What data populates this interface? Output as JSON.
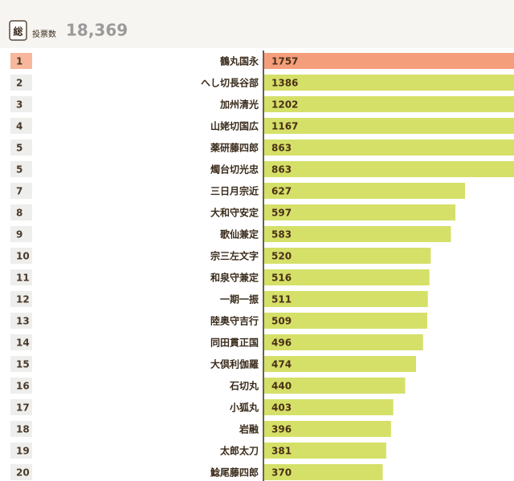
{
  "header": {
    "icon": "総",
    "label": "投票数",
    "total": "18,369"
  },
  "chart_data": {
    "type": "barh",
    "ranks": [
      "1",
      "2",
      "3",
      "4",
      "5",
      "5",
      "7",
      "8",
      "9",
      "10",
      "11",
      "12",
      "13",
      "14",
      "15",
      "16",
      "17",
      "18",
      "19",
      "20"
    ],
    "categories": [
      "鶴丸国永",
      "へし切長谷部",
      "加州清光",
      "山姥切国広",
      "薬研藤四郎",
      "燭台切光忠",
      "三日月宗近",
      "大和守安定",
      "歌仙兼定",
      "宗三左文字",
      "和泉守兼定",
      "一期一振",
      "陸奥守吉行",
      "同田貫正国",
      "大倶利伽羅",
      "石切丸",
      "小狐丸",
      "岩融",
      "太郎太刀",
      "鯰尾藤四郎"
    ],
    "values": [
      1757,
      1386,
      1202,
      1167,
      863,
      863,
      627,
      597,
      583,
      520,
      516,
      511,
      509,
      496,
      474,
      440,
      403,
      396,
      381,
      370
    ],
    "colors": [
      "#f59e7c",
      "#d5e068",
      "#d5e068",
      "#d5e068",
      "#d5e068",
      "#d5e068",
      "#d5e068",
      "#d5e068",
      "#d5e068",
      "#d5e068",
      "#d5e068",
      "#d5e068",
      "#d5e068",
      "#d5e068",
      "#d5e068",
      "#d5e068",
      "#d5e068",
      "#d5e068",
      "#d5e068",
      "#d5e068"
    ]
  }
}
